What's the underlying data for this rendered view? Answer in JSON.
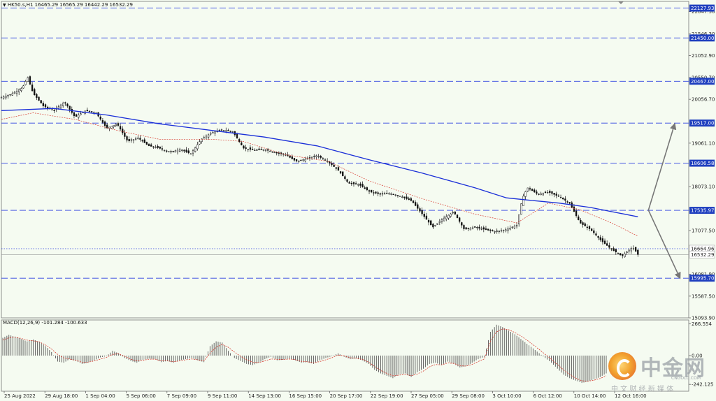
{
  "header": {
    "symbol_line": "HK50.s,H1  16465.29 16565.29 16442.29 16532.29"
  },
  "colors": {
    "bg": "#f5fbf1",
    "ma_slow": "#1a2fd8",
    "ma_fast": "#d83a2e",
    "level": "#2a3ee0",
    "candle": "#111111",
    "tag": "#1f3fbf"
  },
  "chart_data": {
    "type": "line",
    "title": "",
    "ylim": [
      15093.9,
      22280
    ],
    "y_ticks": [
      22047.5,
      21546.3,
      21052.9,
      20550.7,
      20056.7,
      19061.1,
      18073.1,
      17077.5,
      16081.9,
      15587.5,
      15093.9
    ],
    "x_ticks": [
      "25 Aug 2022",
      "29 Aug 18:00",
      "1 Sep 04:00",
      "5 Sep 06:00",
      "7 Sep 09:00",
      "9 Sep 11:00",
      "14 Sep 13:00",
      "16 Sep 15:00",
      "20 Sep 17:00",
      "22 Sep 19:00",
      "27 Sep 05:00",
      "29 Sep 08:00",
      "3 Oct 10:00",
      "6 Oct 12:00",
      "10 Oct 14:00",
      "12 Oct 16:00"
    ],
    "levels": [
      22127.93,
      21450.0,
      20467.0,
      19517.0,
      18606.58,
      17535.97,
      15995.7
    ],
    "levels_label": [
      "22127.93",
      "21450.00",
      "20467.00",
      "19517.00",
      "18606.58",
      "17535.97",
      "15995.70"
    ],
    "current_price": 16532.29,
    "current_price_label": "16532.29",
    "dotted_level": 16664.96,
    "dotted_level_label": "16664.96",
    "price_path": [
      [
        0,
        20100
      ],
      [
        2,
        20180
      ],
      [
        4,
        20320
      ],
      [
        5,
        20560
      ],
      [
        6,
        20200
      ],
      [
        8,
        19900
      ],
      [
        10,
        19800
      ],
      [
        12,
        20000
      ],
      [
        14,
        19650
      ],
      [
        16,
        19800
      ],
      [
        18,
        19750
      ],
      [
        20,
        19400
      ],
      [
        22,
        19500
      ],
      [
        24,
        19100
      ],
      [
        26,
        19180
      ],
      [
        28,
        19000
      ],
      [
        30,
        18950
      ],
      [
        32,
        18850
      ],
      [
        34,
        18920
      ],
      [
        36,
        18820
      ],
      [
        38,
        19150
      ],
      [
        40,
        19300
      ],
      [
        42,
        19360
      ],
      [
        44,
        19320
      ],
      [
        46,
        18950
      ],
      [
        48,
        18900
      ],
      [
        50,
        18920
      ],
      [
        52,
        18850
      ],
      [
        54,
        18800
      ],
      [
        56,
        18650
      ],
      [
        58,
        18700
      ],
      [
        60,
        18780
      ],
      [
        62,
        18650
      ],
      [
        64,
        18450
      ],
      [
        66,
        18150
      ],
      [
        68,
        18120
      ],
      [
        70,
        17960
      ],
      [
        72,
        17900
      ],
      [
        74,
        17920
      ],
      [
        76,
        17850
      ],
      [
        78,
        17750
      ],
      [
        80,
        17450
      ],
      [
        82,
        17150
      ],
      [
        84,
        17350
      ],
      [
        86,
        17500
      ],
      [
        88,
        17100
      ],
      [
        90,
        17150
      ],
      [
        92,
        17100
      ],
      [
        94,
        17050
      ],
      [
        96,
        17100
      ],
      [
        98,
        17200
      ],
      [
        99,
        17800
      ],
      [
        100,
        18050
      ],
      [
        102,
        17900
      ],
      [
        104,
        17950
      ],
      [
        106,
        17850
      ],
      [
        108,
        17700
      ],
      [
        110,
        17250
      ],
      [
        112,
        17100
      ],
      [
        114,
        16850
      ],
      [
        116,
        16650
      ],
      [
        118,
        16500
      ],
      [
        120,
        16700
      ],
      [
        121,
        16532
      ]
    ],
    "ma_slow_path": [
      [
        0,
        19800
      ],
      [
        10,
        19850
      ],
      [
        20,
        19700
      ],
      [
        30,
        19500
      ],
      [
        40,
        19350
      ],
      [
        50,
        19200
      ],
      [
        60,
        19000
      ],
      [
        70,
        18680
      ],
      [
        80,
        18380
      ],
      [
        90,
        18050
      ],
      [
        96,
        17820
      ],
      [
        100,
        17770
      ],
      [
        106,
        17700
      ],
      [
        112,
        17600
      ],
      [
        121,
        17390
      ]
    ],
    "ma_fast_path": [
      [
        0,
        19600
      ],
      [
        6,
        19750
      ],
      [
        14,
        19600
      ],
      [
        22,
        19350
      ],
      [
        30,
        19150
      ],
      [
        40,
        19150
      ],
      [
        46,
        19100
      ],
      [
        54,
        18800
      ],
      [
        62,
        18650
      ],
      [
        70,
        18200
      ],
      [
        80,
        17800
      ],
      [
        90,
        17450
      ],
      [
        98,
        17250
      ],
      [
        104,
        17700
      ],
      [
        110,
        17550
      ],
      [
        116,
        17250
      ],
      [
        121,
        16950
      ]
    ],
    "projection": [
      {
        "from": [
          123,
          17540
        ],
        "to": [
          128,
          19500
        ]
      },
      {
        "from": [
          123,
          17540
        ],
        "to": [
          129,
          15995
        ]
      }
    ],
    "x_max": 130
  },
  "macd": {
    "label": "MACD(12,26,9) -101.284 -100.633",
    "ticks": [
      "266.554",
      "0.00",
      "-242.125"
    ],
    "range": [
      -300,
      300
    ],
    "hist": [
      150,
      175,
      160,
      140,
      120,
      135,
      115,
      80,
      30,
      -50,
      -60,
      -30,
      -45,
      -70,
      -60,
      -40,
      -15,
      -5,
      40,
      20,
      -20,
      -45,
      -60,
      -35,
      -25,
      -30,
      -55,
      -45,
      -60,
      -40,
      -30,
      -20,
      -40,
      -55,
      80,
      120,
      110,
      40,
      -20,
      -45,
      -70,
      -80,
      -60,
      -30,
      -10,
      -40,
      -35,
      -25,
      -40,
      -60,
      -55,
      -70,
      -40,
      -20,
      -5,
      20,
      -10,
      -30,
      -25,
      -40,
      -70,
      -120,
      -150,
      -170,
      -190,
      -160,
      -150,
      -180,
      -140,
      -110,
      -70,
      -60,
      -80,
      -50,
      -70,
      -100,
      -90,
      -60,
      -30,
      -10,
      200,
      260,
      240,
      210,
      180,
      140,
      100,
      60,
      20,
      -20,
      -60,
      -110,
      -160,
      -190,
      -210,
      -230,
      -220,
      -200,
      -180,
      -150
    ],
    "signal": [
      130,
      150,
      155,
      145,
      130,
      125,
      115,
      90,
      55,
      10,
      -20,
      -30,
      -40,
      -55,
      -55,
      -45,
      -30,
      -15,
      10,
      15,
      -5,
      -30,
      -45,
      -40,
      -30,
      -30,
      -45,
      -45,
      -52,
      -45,
      -35,
      -28,
      -35,
      -45,
      20,
      70,
      95,
      70,
      30,
      -5,
      -35,
      -55,
      -58,
      -45,
      -28,
      -32,
      -33,
      -29,
      -34,
      -48,
      -52,
      -62,
      -50,
      -35,
      -18,
      5,
      -2,
      -18,
      -22,
      -32,
      -55,
      -90,
      -125,
      -150,
      -170,
      -165,
      -158,
      -170,
      -155,
      -130,
      -95,
      -75,
      -78,
      -62,
      -66,
      -86,
      -88,
      -74,
      -50,
      -28,
      120,
      200,
      225,
      218,
      195,
      165,
      130,
      92,
      52,
      10,
      -30,
      -75,
      -120,
      -160,
      -190,
      -212,
      -216,
      -207,
      -193,
      -170
    ]
  },
  "watermark": {
    "brand_cn": "中金网",
    "brand_en": "CNGOLD.COM",
    "slogan": "中 文 财 经 新 媒 体"
  }
}
